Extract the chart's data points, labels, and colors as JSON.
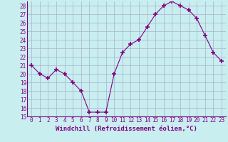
{
  "x": [
    0,
    1,
    2,
    3,
    4,
    5,
    6,
    7,
    8,
    9,
    10,
    11,
    12,
    13,
    14,
    15,
    16,
    17,
    18,
    19,
    20,
    21,
    22,
    23
  ],
  "y": [
    21.0,
    20.0,
    19.5,
    20.5,
    20.0,
    19.0,
    18.0,
    15.5,
    15.5,
    15.5,
    20.0,
    22.5,
    23.5,
    24.0,
    25.5,
    27.0,
    28.0,
    28.5,
    28.0,
    27.5,
    26.5,
    24.5,
    22.5,
    21.5
  ],
  "line_color": "#800080",
  "marker": "+",
  "marker_size": 4,
  "bg_color": "#c8eef0",
  "grid_color": "#aab0cc",
  "xlabel": "Windchill (Refroidissement éolien,°C)",
  "ylim": [
    15,
    28.5
  ],
  "xlim": [
    -0.5,
    23.5
  ],
  "yticks": [
    15,
    16,
    17,
    18,
    19,
    20,
    21,
    22,
    23,
    24,
    25,
    26,
    27,
    28
  ],
  "xticks": [
    0,
    1,
    2,
    3,
    4,
    5,
    6,
    7,
    8,
    9,
    10,
    11,
    12,
    13,
    14,
    15,
    16,
    17,
    18,
    19,
    20,
    21,
    22,
    23
  ],
  "tick_fontsize": 5.5,
  "label_fontsize": 6.5
}
